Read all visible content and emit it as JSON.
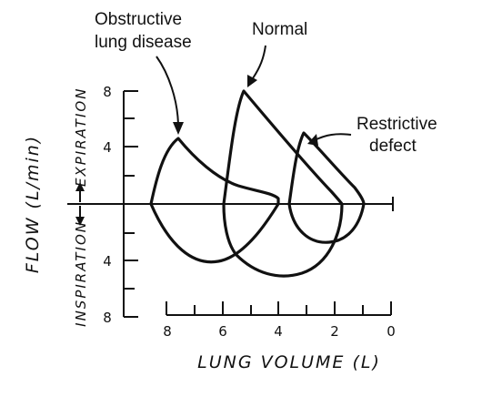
{
  "labels": {
    "obstructive_line1": "Obstructive",
    "obstructive_line2": "lung disease",
    "normal": "Normal",
    "restrictive_line1": "Restrictive",
    "restrictive_line2": "defect",
    "expiration": "EXPIRATION",
    "inspiration": "INSPIRATION",
    "flow_axis": "FLOW (L/min)",
    "volume_axis": "LUNG VOLUME (L)"
  },
  "flow_ticks": [
    "8",
    "4",
    "4",
    "8"
  ],
  "volume_ticks": [
    "8",
    "6",
    "4",
    "2",
    "0"
  ],
  "curves": [
    {
      "name": "obstructive"
    },
    {
      "name": "normal"
    },
    {
      "name": "restrictive"
    }
  ]
}
